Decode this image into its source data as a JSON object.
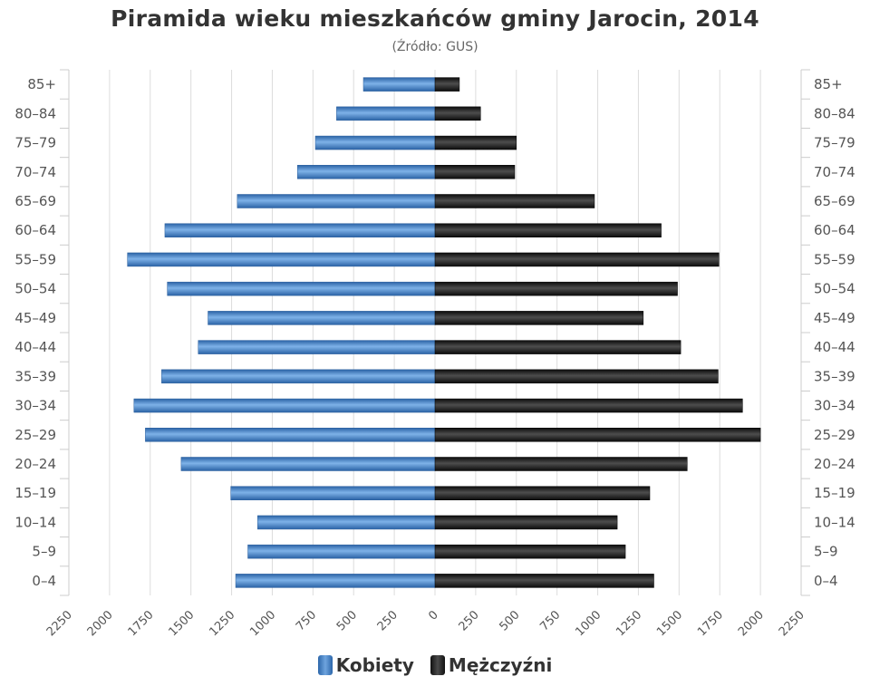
{
  "chart_data": {
    "type": "bar",
    "orientation": "horizontal",
    "title": "Piramida wieku mieszkańców gminy Jarocin, 2014",
    "subtitle": "(Źródło: GUS)",
    "categories": [
      "0–4",
      "5–9",
      "10–14",
      "15–19",
      "20–24",
      "25–29",
      "30–34",
      "35–39",
      "40–44",
      "45–49",
      "50–54",
      "55–59",
      "60–64",
      "65–69",
      "70–74",
      "75–79",
      "80–84",
      "85+"
    ],
    "series": [
      {
        "name": "Kobiety",
        "color": "#3a78c2",
        "side": "left",
        "values": [
          1225,
          1150,
          1090,
          1255,
          1560,
          1780,
          1850,
          1680,
          1455,
          1395,
          1645,
          1890,
          1660,
          1215,
          845,
          735,
          605,
          440
        ]
      },
      {
        "name": "Mężczyźni",
        "color": "#1a1a1a",
        "side": "right",
        "values": [
          1345,
          1170,
          1120,
          1320,
          1550,
          2000,
          1890,
          1740,
          1510,
          1280,
          1490,
          1745,
          1390,
          980,
          490,
          500,
          280,
          150
        ]
      }
    ],
    "x_ticks": [
      "2250",
      "2000",
      "1750",
      "1500",
      "1250",
      "1000",
      "750",
      "500",
      "250",
      "0",
      "250",
      "500",
      "750",
      "1000",
      "1250",
      "1500",
      "1750",
      "2000",
      "2250"
    ],
    "xlim": [
      -2250,
      2250
    ],
    "grid": true,
    "legend_position": "bottom"
  }
}
